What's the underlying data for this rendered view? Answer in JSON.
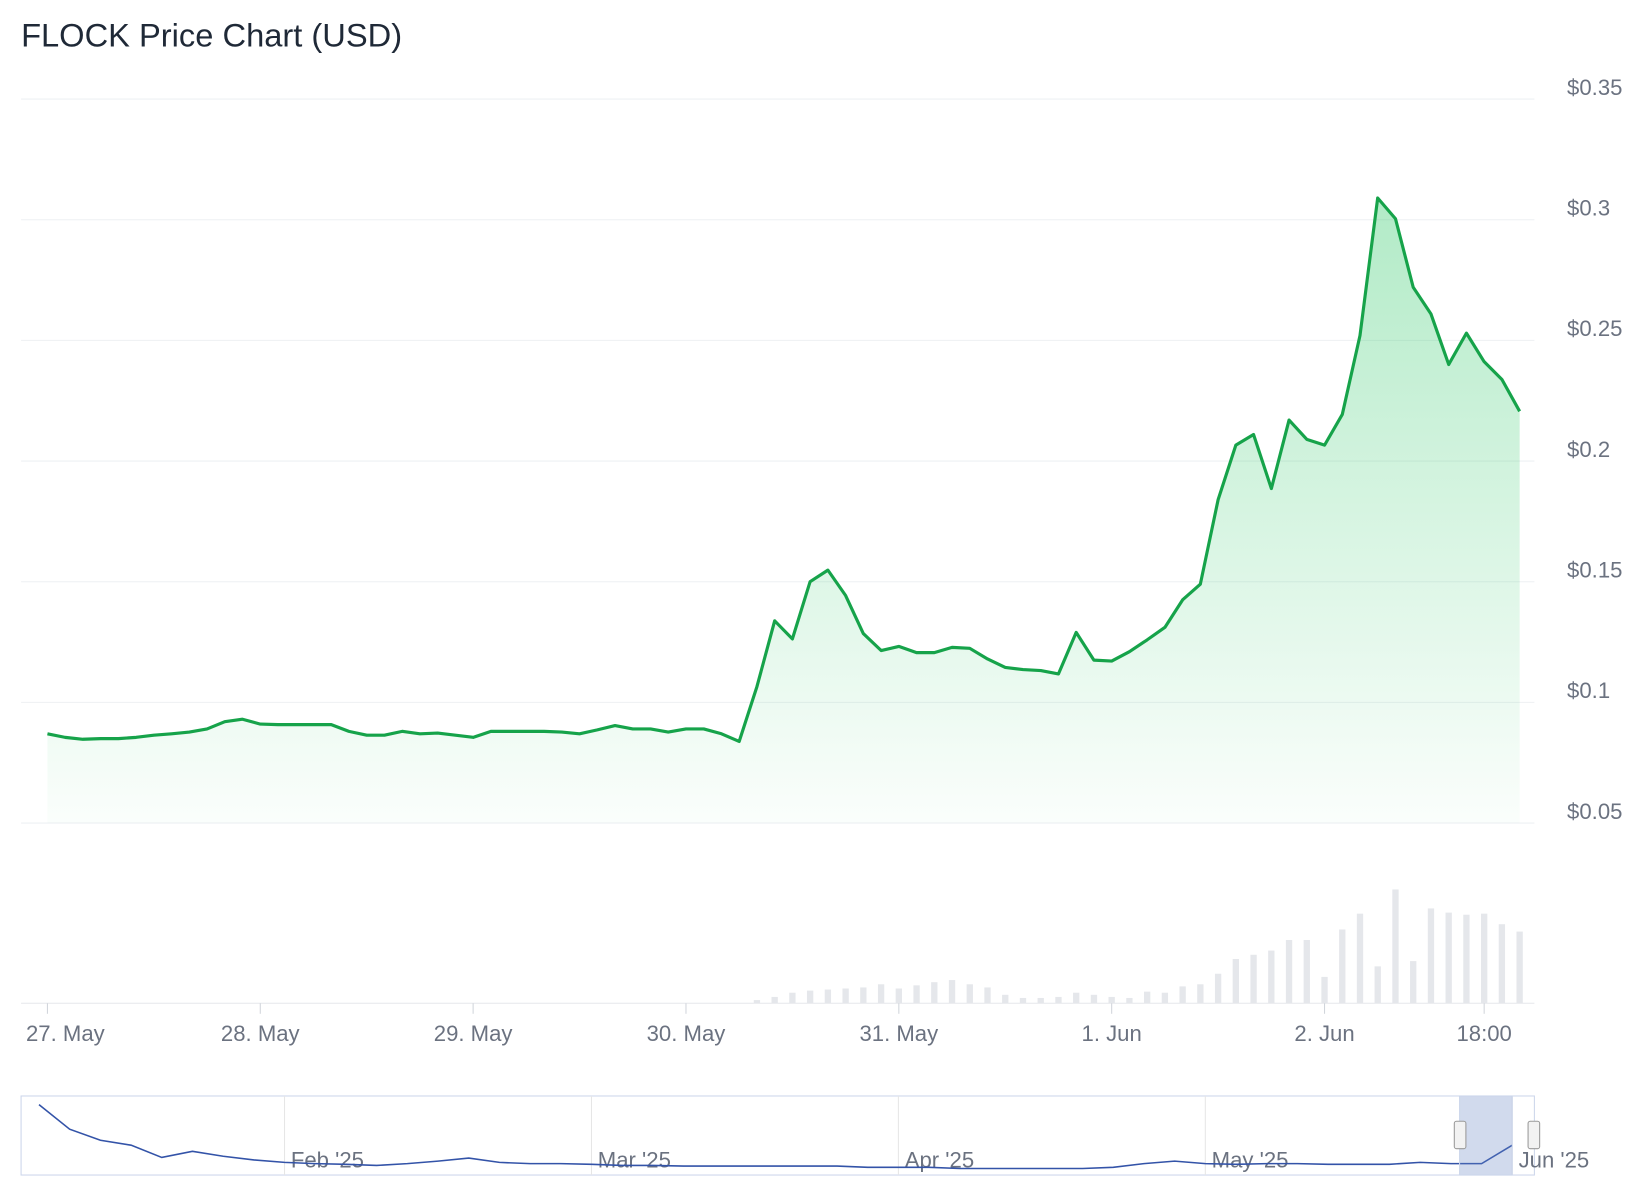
{
  "chart_data": {
    "type": "line",
    "title": "FLOCK Price Chart (USD)",
    "categories": [
      "27. May",
      null,
      null,
      null,
      null,
      null,
      null,
      null,
      null,
      null,
      null,
      null,
      "28. May",
      null,
      null,
      null,
      null,
      null,
      null,
      null,
      null,
      null,
      null,
      null,
      "29. May",
      null,
      null,
      null,
      null,
      null,
      null,
      null,
      null,
      null,
      null,
      null,
      "30. May",
      null,
      null,
      null,
      null,
      null,
      null,
      null,
      null,
      null,
      null,
      null,
      "31. May",
      null,
      null,
      null,
      null,
      null,
      null,
      null,
      null,
      null,
      null,
      null,
      "1. Jun",
      null,
      null,
      null,
      null,
      null,
      null,
      null,
      null,
      null,
      null,
      null,
      "2. Jun",
      null,
      null,
      null,
      null,
      null,
      null,
      null,
      null,
      "18:00",
      null,
      null
    ],
    "values": [
      0.087,
      0.0855,
      0.0847,
      0.085,
      0.085,
      0.0855,
      0.0864,
      0.087,
      0.0877,
      0.089,
      0.092,
      0.093,
      0.091,
      0.0908,
      0.0908,
      0.0908,
      0.0908,
      0.088,
      0.0864,
      0.0864,
      0.088,
      0.087,
      0.0873,
      0.0864,
      0.0855,
      0.088,
      0.088,
      0.088,
      0.088,
      0.0877,
      0.087,
      0.0886,
      0.0904,
      0.089,
      0.089,
      0.0877,
      0.089,
      0.089,
      0.087,
      0.0838,
      0.1066,
      0.1338,
      0.1263,
      0.15,
      0.1548,
      0.1443,
      0.1285,
      0.1215,
      0.1232,
      0.1206,
      0.1206,
      0.1228,
      0.1224,
      0.118,
      0.1145,
      0.1136,
      0.1132,
      0.1118,
      0.129,
      0.1175,
      0.1171,
      0.121,
      0.1259,
      0.1311,
      0.1425,
      0.149,
      0.184,
      0.2066,
      0.211,
      0.1886,
      0.217,
      0.209,
      0.2066,
      0.2193,
      0.252,
      0.309,
      0.3004,
      0.272,
      0.261,
      0.24,
      0.253,
      0.2412,
      0.2338,
      0.2206
    ],
    "color": "#16a34a",
    "ylim": [
      0.05,
      0.35
    ],
    "yticks": [
      {
        "value": 0.05,
        "label": "$0.05"
      },
      {
        "value": 0.1,
        "label": "$0.1"
      },
      {
        "value": 0.15,
        "label": "$0.15"
      },
      {
        "value": 0.2,
        "label": "$0.2"
      },
      {
        "value": 0.25,
        "label": "$0.25"
      },
      {
        "value": 0.3,
        "label": "$0.3"
      },
      {
        "value": 0.35,
        "label": "$0.35"
      }
    ],
    "grid": true,
    "volume": {
      "values": [
        0,
        0,
        0,
        0,
        0,
        0,
        0,
        0,
        0,
        0,
        0,
        0,
        0,
        0,
        0,
        0,
        0,
        0,
        0,
        0,
        0,
        0,
        0,
        0,
        0,
        0,
        0,
        0,
        0,
        0,
        0,
        0,
        0,
        0,
        0,
        0,
        0,
        0,
        0,
        0,
        3,
        6,
        10,
        12,
        13,
        14,
        15,
        18,
        14,
        17,
        20,
        22,
        18,
        15,
        8,
        5,
        5,
        6,
        10,
        8,
        6,
        5,
        11,
        10,
        16,
        18,
        28,
        42,
        46,
        50,
        60,
        60,
        25,
        70,
        85,
        35,
        108,
        40,
        90,
        86,
        84,
        85,
        75,
        68
      ],
      "color": "#e5e7eb",
      "ylim": [
        0,
        110
      ]
    },
    "navigator": {
      "categories": [
        null,
        null,
        null,
        null,
        null,
        null,
        null,
        null,
        "Feb '25",
        null,
        null,
        null,
        null,
        null,
        null,
        null,
        null,
        null,
        "Mar '25",
        null,
        null,
        null,
        null,
        null,
        null,
        null,
        null,
        null,
        "Apr '25",
        null,
        null,
        null,
        null,
        null,
        null,
        null,
        null,
        null,
        "May '25",
        null,
        null,
        null,
        null,
        null,
        null,
        null,
        null,
        null,
        "Jun '25"
      ],
      "values": [
        0.53,
        0.33,
        0.24,
        0.2,
        0.1,
        0.15,
        0.11,
        0.08,
        0.06,
        0.05,
        0.045,
        0.035,
        0.05,
        0.07,
        0.095,
        0.06,
        0.05,
        0.05,
        0.045,
        0.035,
        0.035,
        0.03,
        0.03,
        0.03,
        0.03,
        0.03,
        0.03,
        0.02,
        0.02,
        0.02,
        0.01,
        0.01,
        0.01,
        0.01,
        0.01,
        0.02,
        0.05,
        0.07,
        0.05,
        0.045,
        0.05,
        0.05,
        0.045,
        0.045,
        0.045,
        0.06,
        0.05,
        0.05,
        0.2
      ],
      "color": "#3353a8",
      "ylim": [
        0,
        0.6
      ]
    }
  }
}
